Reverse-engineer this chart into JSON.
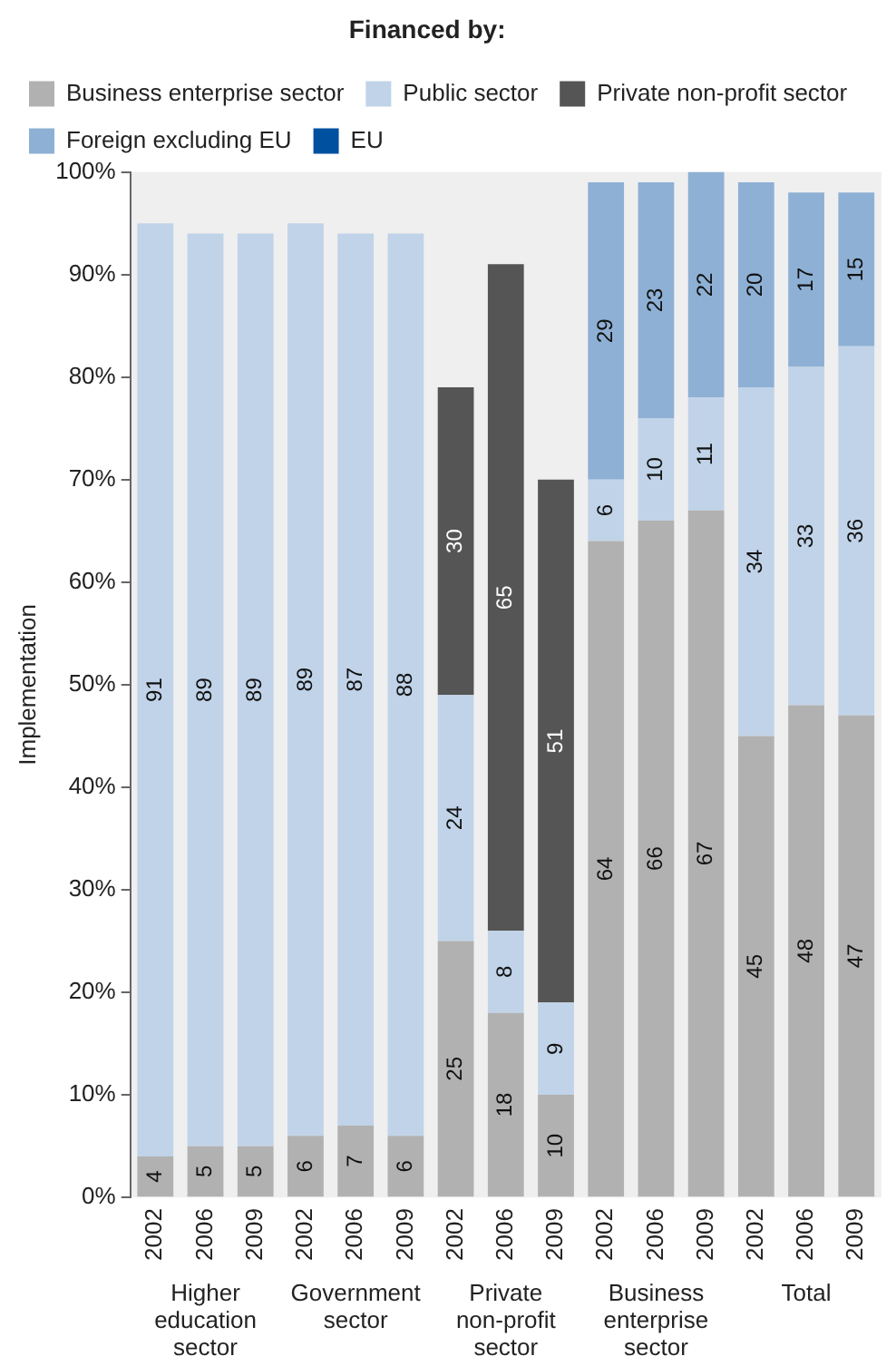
{
  "chart_data": {
    "type": "bar",
    "stacked": true,
    "legend_title": "Financed by:",
    "ylabel": "Implementation",
    "categories": [
      "2002",
      "2006",
      "2009",
      "2002",
      "2006",
      "2009",
      "2002",
      "2006",
      "2009",
      "2002",
      "2006",
      "2009",
      "2002",
      "2006",
      "2009"
    ],
    "annotations": [
      "Higher education sector",
      "Government sector",
      "Private non-profit sector",
      "Business enterprise sector",
      "Total"
    ],
    "series": [
      {
        "name": "Business enterprise sector",
        "color": "#b1b1b1",
        "values": [
          4,
          5,
          5,
          6,
          7,
          6,
          25,
          18,
          10,
          64,
          66,
          67,
          45,
          48,
          47
        ]
      },
      {
        "name": "Public sector",
        "color": "#c0d3e8",
        "values": [
          91,
          89,
          89,
          89,
          87,
          88,
          24,
          8,
          9,
          6,
          10,
          11,
          34,
          33,
          36
        ]
      },
      {
        "name": "Private non-profit sector",
        "color": "#555555",
        "values": [
          null,
          null,
          null,
          null,
          null,
          null,
          30,
          65,
          51,
          null,
          null,
          null,
          null,
          null,
          null
        ]
      },
      {
        "name": "Foreign excluding EU",
        "color": "#8eb0d4",
        "values": [
          null,
          null,
          null,
          null,
          null,
          null,
          null,
          null,
          null,
          29,
          23,
          22,
          20,
          17,
          15
        ]
      },
      {
        "name": "EU",
        "color": "#0050a0",
        "values": [
          null,
          null,
          null,
          null,
          null,
          null,
          null,
          null,
          null,
          null,
          null,
          null,
          null,
          null,
          null
        ]
      }
    ],
    "ylim": [
      0,
      100
    ],
    "yticks": [
      {
        "value": 0,
        "label": "0%"
      },
      {
        "value": 10,
        "label": "10%"
      },
      {
        "value": 20,
        "label": "20%"
      },
      {
        "value": 30,
        "label": "30%"
      },
      {
        "value": 40,
        "label": "40%"
      },
      {
        "value": 50,
        "label": "50%"
      },
      {
        "value": 60,
        "label": "60%"
      },
      {
        "value": 70,
        "label": "70%"
      },
      {
        "value": 80,
        "label": "80%"
      },
      {
        "value": 90,
        "label": "90%"
      },
      {
        "value": 100,
        "label": "100%"
      }
    ],
    "grid": false,
    "legend": "top left",
    "data_labels": true
  }
}
